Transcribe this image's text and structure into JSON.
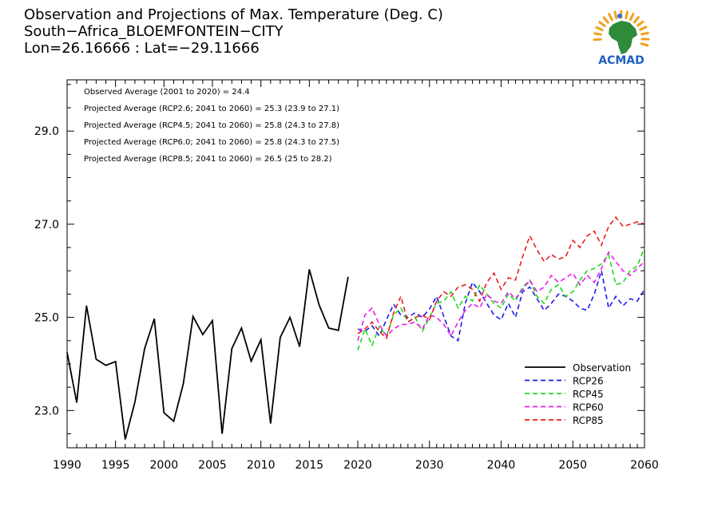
{
  "header": {
    "title": "Observation and Projections of Max. Temperature (Deg. C)",
    "location": "South−Africa_BLOEMFONTEIN−CITY",
    "coords": "Lon=26.16666 : Lat=−29.11666"
  },
  "logo": {
    "text": "ACMAD",
    "colors": {
      "africa": "#2e8b3a",
      "rays": "#f2a01c",
      "drop": "#2a6fd6",
      "text": "#1f5fbf"
    }
  },
  "annotations": [
    "Observed Average (2001 to 2020) = 24.4",
    "Projected Average (RCP2.6; 2041 to 2060) = 25.3 (23.9 to 27.1)",
    "Projected Average (RCP4.5; 2041 to 2060) = 25.8 (24.3 to 27.8)",
    "Projected Average (RCP6.0; 2041 to 2060) = 25.8 (24.3 to 27.5)",
    "Projected Average (RCP8.5; 2041 to 2060) = 26.5 (25 to 28.2)"
  ],
  "chart_data": {
    "type": "line",
    "ylim": [
      22.2,
      30.1
    ],
    "y_ticks": [
      {
        "value": 23.0,
        "label": "23.0"
      },
      {
        "value": 25.0,
        "label": "25.0"
      },
      {
        "value": 27.0,
        "label": "27.0"
      },
      {
        "value": 29.0,
        "label": "29.0"
      }
    ],
    "x_ticks_left": [
      {
        "value": 1990,
        "label": "1990"
      },
      {
        "value": 1995,
        "label": "1995"
      },
      {
        "value": 2000,
        "label": "2000"
      },
      {
        "value": 2005,
        "label": "2005"
      },
      {
        "value": 2010,
        "label": "2010"
      },
      {
        "value": 2015,
        "label": "2015"
      },
      {
        "value": 2020,
        "label": "2020"
      }
    ],
    "x_ticks_right": [
      {
        "value": 2030,
        "label": "2030"
      },
      {
        "value": 2040,
        "label": "2040"
      },
      {
        "value": 2050,
        "label": "2050"
      },
      {
        "value": 2060,
        "label": "2060"
      }
    ],
    "legend_position": "bottom-right",
    "series": [
      {
        "name": "Observation",
        "color": "#000000",
        "dashed": false,
        "x": [
          1990,
          1991,
          1992,
          1993,
          1994,
          1995,
          1996,
          1997,
          1998,
          1999,
          2000,
          2001,
          2002,
          2003,
          2004,
          2005,
          2006,
          2007,
          2008,
          2009,
          2010,
          2011,
          2012,
          2013,
          2014,
          2015,
          2016,
          2017,
          2018,
          2019
        ],
        "y": [
          24.25,
          23.17,
          25.25,
          24.1,
          23.97,
          24.05,
          22.38,
          23.18,
          24.33,
          24.97,
          22.95,
          22.77,
          23.58,
          25.02,
          24.63,
          24.93,
          22.5,
          24.33,
          24.77,
          24.06,
          24.52,
          22.72,
          24.57,
          25.0,
          24.37,
          26.03,
          25.27,
          24.77,
          24.72,
          25.87
        ]
      },
      {
        "name": "RCP26",
        "color": "#1a1aee",
        "dashed": true,
        "x": [
          2020,
          2021,
          2022,
          2023,
          2024,
          2025,
          2026,
          2027,
          2028,
          2029,
          2030,
          2031,
          2032,
          2033,
          2034,
          2035,
          2036,
          2037,
          2038,
          2039,
          2040,
          2041,
          2042,
          2043,
          2044,
          2045,
          2046,
          2047,
          2048,
          2049,
          2050,
          2051,
          2052,
          2053,
          2054,
          2055,
          2056,
          2057,
          2058,
          2059,
          2060
        ],
        "y": [
          24.75,
          24.7,
          24.82,
          24.6,
          24.95,
          25.28,
          25.05,
          25.0,
          25.1,
          25.0,
          25.18,
          25.45,
          25.02,
          24.6,
          24.5,
          25.3,
          25.75,
          25.55,
          25.3,
          25.05,
          24.95,
          25.3,
          25.0,
          25.55,
          25.65,
          25.4,
          25.15,
          25.3,
          25.5,
          25.45,
          25.35,
          25.2,
          25.15,
          25.5,
          26.0,
          25.2,
          25.45,
          25.25,
          25.4,
          25.35,
          25.6
        ]
      },
      {
        "name": "RCP45",
        "color": "#1adb1a",
        "dashed": true,
        "x": [
          2020,
          2021,
          2022,
          2023,
          2024,
          2025,
          2026,
          2027,
          2028,
          2029,
          2030,
          2031,
          2032,
          2033,
          2034,
          2035,
          2036,
          2037,
          2038,
          2039,
          2040,
          2041,
          2042,
          2043,
          2044,
          2045,
          2046,
          2047,
          2048,
          2049,
          2050,
          2051,
          2052,
          2053,
          2054,
          2055,
          2056,
          2057,
          2058,
          2059,
          2060
        ],
        "y": [
          24.3,
          24.75,
          24.4,
          24.8,
          24.6,
          25.05,
          25.2,
          24.9,
          25.0,
          24.7,
          25.0,
          25.3,
          25.35,
          25.55,
          25.2,
          25.45,
          25.35,
          25.7,
          25.5,
          25.3,
          25.2,
          25.5,
          25.35,
          25.65,
          25.8,
          25.45,
          25.3,
          25.6,
          25.7,
          25.45,
          25.55,
          25.8,
          26.0,
          26.05,
          26.15,
          26.35,
          25.7,
          25.75,
          26.0,
          26.1,
          26.5
        ]
      },
      {
        "name": "RCP60",
        "color": "#ee1aee",
        "dashed": true,
        "x": [
          2020,
          2021,
          2022,
          2023,
          2024,
          2025,
          2026,
          2027,
          2028,
          2029,
          2030,
          2031,
          2032,
          2033,
          2034,
          2035,
          2036,
          2037,
          2038,
          2039,
          2040,
          2041,
          2042,
          2043,
          2044,
          2045,
          2046,
          2047,
          2048,
          2049,
          2050,
          2051,
          2052,
          2053,
          2054,
          2055,
          2056,
          2057,
          2058,
          2059,
          2060
        ],
        "y": [
          24.5,
          25.05,
          25.2,
          24.85,
          24.6,
          24.75,
          24.85,
          24.85,
          24.9,
          24.75,
          25.05,
          25.0,
          24.85,
          24.6,
          24.9,
          25.15,
          25.3,
          25.2,
          25.5,
          25.35,
          25.3,
          25.55,
          25.4,
          25.6,
          25.8,
          25.55,
          25.65,
          25.9,
          25.75,
          25.85,
          25.95,
          25.7,
          25.9,
          25.75,
          26.05,
          26.4,
          26.2,
          26.0,
          25.9,
          26.05,
          26.2
        ]
      },
      {
        "name": "RCP85",
        "color": "#ee1a1a",
        "dashed": true,
        "x": [
          2020,
          2021,
          2022,
          2023,
          2024,
          2025,
          2026,
          2027,
          2028,
          2029,
          2030,
          2031,
          2032,
          2033,
          2034,
          2035,
          2036,
          2037,
          2038,
          2039,
          2040,
          2041,
          2042,
          2043,
          2044,
          2045,
          2046,
          2047,
          2048,
          2049,
          2050,
          2051,
          2052,
          2053,
          2054,
          2055,
          2056,
          2057,
          2058,
          2059,
          2060
        ],
        "y": [
          24.65,
          24.75,
          24.9,
          24.7,
          24.55,
          25.1,
          25.45,
          24.9,
          25.0,
          25.05,
          24.95,
          25.35,
          25.55,
          25.45,
          25.65,
          25.7,
          25.6,
          25.35,
          25.75,
          25.95,
          25.6,
          25.85,
          25.8,
          26.3,
          26.75,
          26.45,
          26.2,
          26.35,
          26.25,
          26.3,
          26.65,
          26.5,
          26.75,
          26.85,
          26.55,
          26.95,
          27.15,
          26.95,
          27.0,
          27.05,
          27.0
        ]
      }
    ]
  }
}
